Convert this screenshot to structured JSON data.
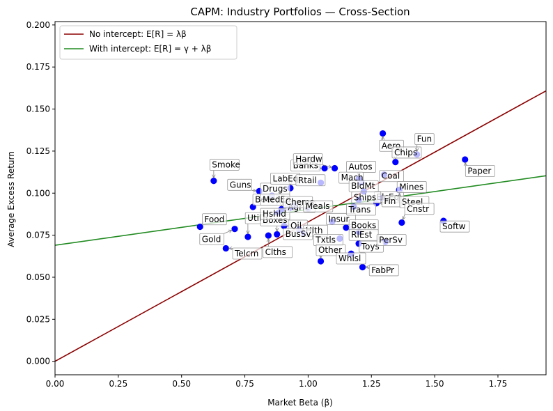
{
  "chart_data": {
    "type": "scatter",
    "title": "CAPM: Industry Portfolios — Cross-Section",
    "xlabel": "Market Beta (β)",
    "ylabel": "Average Excess Return",
    "xlim": [
      0,
      1.94
    ],
    "ylim": [
      -0.008,
      0.202
    ],
    "xticks": [
      0.0,
      0.25,
      0.5,
      0.75,
      1.0,
      1.25,
      1.5,
      1.75
    ],
    "xtick_labels": [
      "0.00",
      "0.25",
      "0.50",
      "0.75",
      "1.00",
      "1.25",
      "1.50",
      "1.75"
    ],
    "yticks": [
      0.0,
      0.025,
      0.05,
      0.075,
      0.1,
      0.125,
      0.15,
      0.175,
      0.2
    ],
    "ytick_labels": [
      "0.000",
      "0.025",
      "0.050",
      "0.075",
      "0.100",
      "0.125",
      "0.150",
      "0.175",
      "0.200"
    ],
    "grid": false,
    "legend_position": "top-left",
    "series": [
      {
        "name": "No intercept: E[R] = λβ",
        "kind": "line",
        "color": "#8b0000",
        "intercept": 0.0,
        "slope": 0.0829
      },
      {
        "name": "With intercept: E[R] = γ + λβ",
        "kind": "line",
        "color": "#228b22",
        "intercept": 0.069,
        "slope": 0.0213
      }
    ],
    "points": [
      {
        "label": "Smoke",
        "beta": 0.627,
        "ret": 0.1073,
        "lx": 0.62,
        "ly": 0.1152
      },
      {
        "label": "Guns",
        "beta": 0.807,
        "ret": 0.1012,
        "lx": 0.69,
        "ly": 0.1033
      },
      {
        "label": "Food",
        "beta": 0.573,
        "ret": 0.08,
        "lx": 0.59,
        "ly": 0.0828
      },
      {
        "label": "Gold",
        "beta": 0.71,
        "ret": 0.0787,
        "lx": 0.58,
        "ly": 0.071
      },
      {
        "label": "Telcm",
        "beta": 0.675,
        "ret": 0.0672,
        "lx": 0.71,
        "ly": 0.0624
      },
      {
        "label": "Clths",
        "beta": 0.843,
        "ret": 0.0748,
        "lx": 0.83,
        "ly": 0.0633
      },
      {
        "label": "Util",
        "beta": 0.762,
        "ret": 0.074,
        "lx": 0.76,
        "ly": 0.0835
      },
      {
        "label": "Boxes",
        "beta": 0.877,
        "ret": 0.0755,
        "lx": 0.82,
        "ly": 0.0822
      },
      {
        "label": "Beer",
        "beta": 0.782,
        "ret": 0.0918,
        "lx": 0.79,
        "ly": 0.0945
      },
      {
        "label": "Drugs",
        "beta": 0.857,
        "ret": 0.0985,
        "lx": 0.82,
        "ly": 0.101
      },
      {
        "label": "LabEq",
        "beta": 0.93,
        "ret": 0.103,
        "lx": 0.86,
        "ly": 0.107
      },
      {
        "label": "MedEq",
        "beta": 0.895,
        "ret": 0.0905,
        "lx": 0.82,
        "ly": 0.0945
      },
      {
        "label": "Hshld",
        "beta": 0.88,
        "ret": 0.088,
        "lx": 0.82,
        "ly": 0.086
      },
      {
        "label": "Agric",
        "beta": 0.925,
        "ret": 0.091,
        "lx": 0.92,
        "ly": 0.09
      },
      {
        "label": "Chems",
        "beta": 0.945,
        "ret": 0.0925,
        "lx": 0.91,
        "ly": 0.093
      },
      {
        "label": "Oil",
        "beta": 0.905,
        "ret": 0.0805,
        "lx": 0.93,
        "ly": 0.079
      },
      {
        "label": "Hlth",
        "beta": 0.965,
        "ret": 0.0785,
        "lx": 0.99,
        "ly": 0.076
      },
      {
        "label": "BusSv",
        "beta": 0.985,
        "ret": 0.0765,
        "lx": 0.91,
        "ly": 0.074
      },
      {
        "label": "Banks",
        "beta": 1.065,
        "ret": 0.1148,
        "lx": 0.94,
        "ly": 0.1148
      },
      {
        "label": "Hardw",
        "beta": 1.105,
        "ret": 0.1148,
        "lx": 0.95,
        "ly": 0.1185
      },
      {
        "label": "Rtail",
        "beta": 1.05,
        "ret": 0.1062,
        "lx": 0.96,
        "ly": 0.106
      },
      {
        "label": "Meals",
        "beta": 1.0,
        "ret": 0.0908,
        "lx": 0.99,
        "ly": 0.0905
      },
      {
        "label": "Insur",
        "beta": 1.095,
        "ret": 0.083,
        "lx": 1.08,
        "ly": 0.083
      },
      {
        "label": "Txtls",
        "beta": 1.125,
        "ret": 0.073,
        "lx": 1.03,
        "ly": 0.0705
      },
      {
        "label": "Other",
        "beta": 1.05,
        "ret": 0.0595,
        "lx": 1.04,
        "ly": 0.0645
      },
      {
        "label": "Whlsl",
        "beta": 1.17,
        "ret": 0.064,
        "lx": 1.12,
        "ly": 0.0595
      },
      {
        "label": "Books",
        "beta": 1.15,
        "ret": 0.0795,
        "lx": 1.17,
        "ly": 0.0792
      },
      {
        "label": "RlEst",
        "beta": 1.2,
        "ret": 0.077,
        "lx": 1.17,
        "ly": 0.0735
      },
      {
        "label": "Trans",
        "beta": 1.18,
        "ret": 0.092,
        "lx": 1.16,
        "ly": 0.0885
      },
      {
        "label": "Toys",
        "beta": 1.2,
        "ret": 0.07,
        "lx": 1.21,
        "ly": 0.0665
      },
      {
        "label": "FabPr",
        "beta": 1.215,
        "ret": 0.056,
        "lx": 1.25,
        "ly": 0.0525
      },
      {
        "label": "Autos",
        "beta": 1.2,
        "ret": 0.1085,
        "lx": 1.16,
        "ly": 0.114
      },
      {
        "label": "Mach",
        "beta": 1.21,
        "ret": 0.1065,
        "lx": 1.13,
        "ly": 0.1075
      },
      {
        "label": "BldMt",
        "beta": 1.22,
        "ret": 0.101,
        "lx": 1.17,
        "ly": 0.1025
      },
      {
        "label": "ElcEq",
        "beta": 1.29,
        "ret": 0.097,
        "lx": 1.27,
        "ly": 0.096
      },
      {
        "label": "Ships",
        "beta": 1.2,
        "ret": 0.096,
        "lx": 1.18,
        "ly": 0.0958
      },
      {
        "label": "Fin",
        "beta": 1.27,
        "ret": 0.094,
        "lx": 1.3,
        "ly": 0.0935
      },
      {
        "label": "Coal",
        "beta": 1.3,
        "ret": 0.111,
        "lx": 1.29,
        "ly": 0.1085
      },
      {
        "label": "Steel",
        "beta": 1.36,
        "ret": 0.1017,
        "lx": 1.37,
        "ly": 0.093
      },
      {
        "label": "Cnstr",
        "beta": 1.37,
        "ret": 0.0825,
        "lx": 1.39,
        "ly": 0.089
      },
      {
        "label": "Aero",
        "beta": 1.295,
        "ret": 0.1355,
        "lx": 1.29,
        "ly": 0.1265
      },
      {
        "label": "Chips",
        "beta": 1.345,
        "ret": 0.1185,
        "lx": 1.34,
        "ly": 0.1225
      },
      {
        "label": "Fun",
        "beta": 1.43,
        "ret": 0.123,
        "lx": 1.43,
        "ly": 0.1305
      },
      {
        "label": "Softw",
        "beta": 1.535,
        "ret": 0.0835,
        "lx": 1.53,
        "ly": 0.0785
      },
      {
        "label": "Paper",
        "beta": 1.62,
        "ret": 0.12,
        "lx": 1.63,
        "ly": 0.1115
      },
      {
        "label": "PerSv",
        "beta": 1.305,
        "ret": 0.071,
        "lx": 1.28,
        "ly": 0.0705
      },
      {
        "label": "Mines",
        "beta": 1.36,
        "ret": 0.102,
        "lx": 1.36,
        "ly": 0.102
      }
    ]
  }
}
